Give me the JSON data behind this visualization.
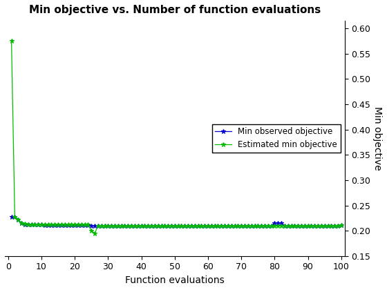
{
  "title": "Min objective vs. Number of function evaluations",
  "xlabel": "Function evaluations",
  "ylabel": "Min objective",
  "xlim": [
    -1,
    101
  ],
  "ylim": [
    0.15,
    0.615
  ],
  "yticks": [
    0.15,
    0.2,
    0.25,
    0.3,
    0.35,
    0.4,
    0.45,
    0.5,
    0.55,
    0.6
  ],
  "xticks": [
    0,
    10,
    20,
    30,
    40,
    50,
    60,
    70,
    80,
    90,
    100
  ],
  "line1_color": "#0000cc",
  "line2_color": "#00bb00",
  "legend_labels": [
    "Min observed objective",
    "Estimated min objective"
  ],
  "line1_x": [
    1,
    2,
    3,
    4,
    5,
    6,
    7,
    8,
    9,
    10,
    11,
    12,
    13,
    14,
    15,
    16,
    17,
    18,
    19,
    20,
    21,
    22,
    23,
    24,
    25,
    26,
    27,
    28,
    29,
    30,
    31,
    32,
    33,
    34,
    35,
    36,
    37,
    38,
    39,
    40,
    41,
    42,
    43,
    44,
    45,
    46,
    47,
    48,
    49,
    50,
    51,
    52,
    53,
    54,
    55,
    56,
    57,
    58,
    59,
    60,
    61,
    62,
    63,
    64,
    65,
    66,
    67,
    68,
    69,
    70,
    71,
    72,
    73,
    74,
    75,
    76,
    77,
    78,
    79,
    80,
    81,
    82,
    83,
    84,
    85,
    86,
    87,
    88,
    89,
    90,
    91,
    92,
    93,
    94,
    95,
    96,
    97,
    98,
    99,
    100
  ],
  "line1_y": [
    0.228,
    0.228,
    0.222,
    0.215,
    0.213,
    0.212,
    0.212,
    0.212,
    0.212,
    0.212,
    0.211,
    0.211,
    0.211,
    0.211,
    0.211,
    0.211,
    0.211,
    0.211,
    0.211,
    0.211,
    0.211,
    0.211,
    0.211,
    0.211,
    0.21,
    0.21,
    0.21,
    0.21,
    0.21,
    0.21,
    0.21,
    0.21,
    0.21,
    0.21,
    0.21,
    0.21,
    0.21,
    0.21,
    0.21,
    0.21,
    0.21,
    0.21,
    0.21,
    0.21,
    0.21,
    0.21,
    0.21,
    0.21,
    0.21,
    0.21,
    0.21,
    0.21,
    0.21,
    0.21,
    0.21,
    0.21,
    0.21,
    0.21,
    0.21,
    0.21,
    0.21,
    0.21,
    0.21,
    0.21,
    0.21,
    0.21,
    0.21,
    0.21,
    0.21,
    0.21,
    0.21,
    0.21,
    0.21,
    0.21,
    0.21,
    0.21,
    0.21,
    0.21,
    0.21,
    0.215,
    0.215,
    0.215,
    0.21,
    0.21,
    0.21,
    0.21,
    0.21,
    0.21,
    0.21,
    0.21,
    0.21,
    0.21,
    0.21,
    0.21,
    0.21,
    0.21,
    0.21,
    0.21,
    0.21,
    0.211
  ],
  "line2_x": [
    1,
    2,
    3,
    4,
    5,
    6,
    7,
    8,
    9,
    10,
    11,
    12,
    13,
    14,
    15,
    16,
    17,
    18,
    19,
    20,
    21,
    22,
    23,
    24,
    25,
    26,
    27,
    28,
    29,
    30,
    31,
    32,
    33,
    34,
    35,
    36,
    37,
    38,
    39,
    40,
    41,
    42,
    43,
    44,
    45,
    46,
    47,
    48,
    49,
    50,
    51,
    52,
    53,
    54,
    55,
    56,
    57,
    58,
    59,
    60,
    61,
    62,
    63,
    64,
    65,
    66,
    67,
    68,
    69,
    70,
    71,
    72,
    73,
    74,
    75,
    76,
    77,
    78,
    79,
    80,
    81,
    82,
    83,
    84,
    85,
    86,
    87,
    88,
    89,
    90,
    91,
    92,
    93,
    94,
    95,
    96,
    97,
    98,
    99,
    100
  ],
  "line2_y": [
    0.575,
    0.228,
    0.222,
    0.215,
    0.214,
    0.213,
    0.213,
    0.212,
    0.212,
    0.212,
    0.212,
    0.212,
    0.212,
    0.212,
    0.212,
    0.212,
    0.212,
    0.212,
    0.212,
    0.212,
    0.212,
    0.212,
    0.212,
    0.212,
    0.2,
    0.195,
    0.21,
    0.21,
    0.21,
    0.21,
    0.21,
    0.21,
    0.21,
    0.21,
    0.21,
    0.21,
    0.21,
    0.21,
    0.21,
    0.21,
    0.21,
    0.21,
    0.21,
    0.21,
    0.21,
    0.21,
    0.21,
    0.21,
    0.21,
    0.21,
    0.21,
    0.21,
    0.21,
    0.21,
    0.21,
    0.21,
    0.21,
    0.21,
    0.21,
    0.21,
    0.21,
    0.21,
    0.21,
    0.21,
    0.21,
    0.21,
    0.21,
    0.21,
    0.21,
    0.21,
    0.21,
    0.21,
    0.21,
    0.21,
    0.21,
    0.21,
    0.21,
    0.21,
    0.21,
    0.21,
    0.21,
    0.21,
    0.21,
    0.21,
    0.21,
    0.21,
    0.21,
    0.21,
    0.21,
    0.21,
    0.21,
    0.21,
    0.21,
    0.21,
    0.21,
    0.21,
    0.21,
    0.21,
    0.21,
    0.211
  ],
  "bg_color": "#ffffff",
  "title_fontsize": 11,
  "label_fontsize": 10,
  "tick_fontsize": 9
}
